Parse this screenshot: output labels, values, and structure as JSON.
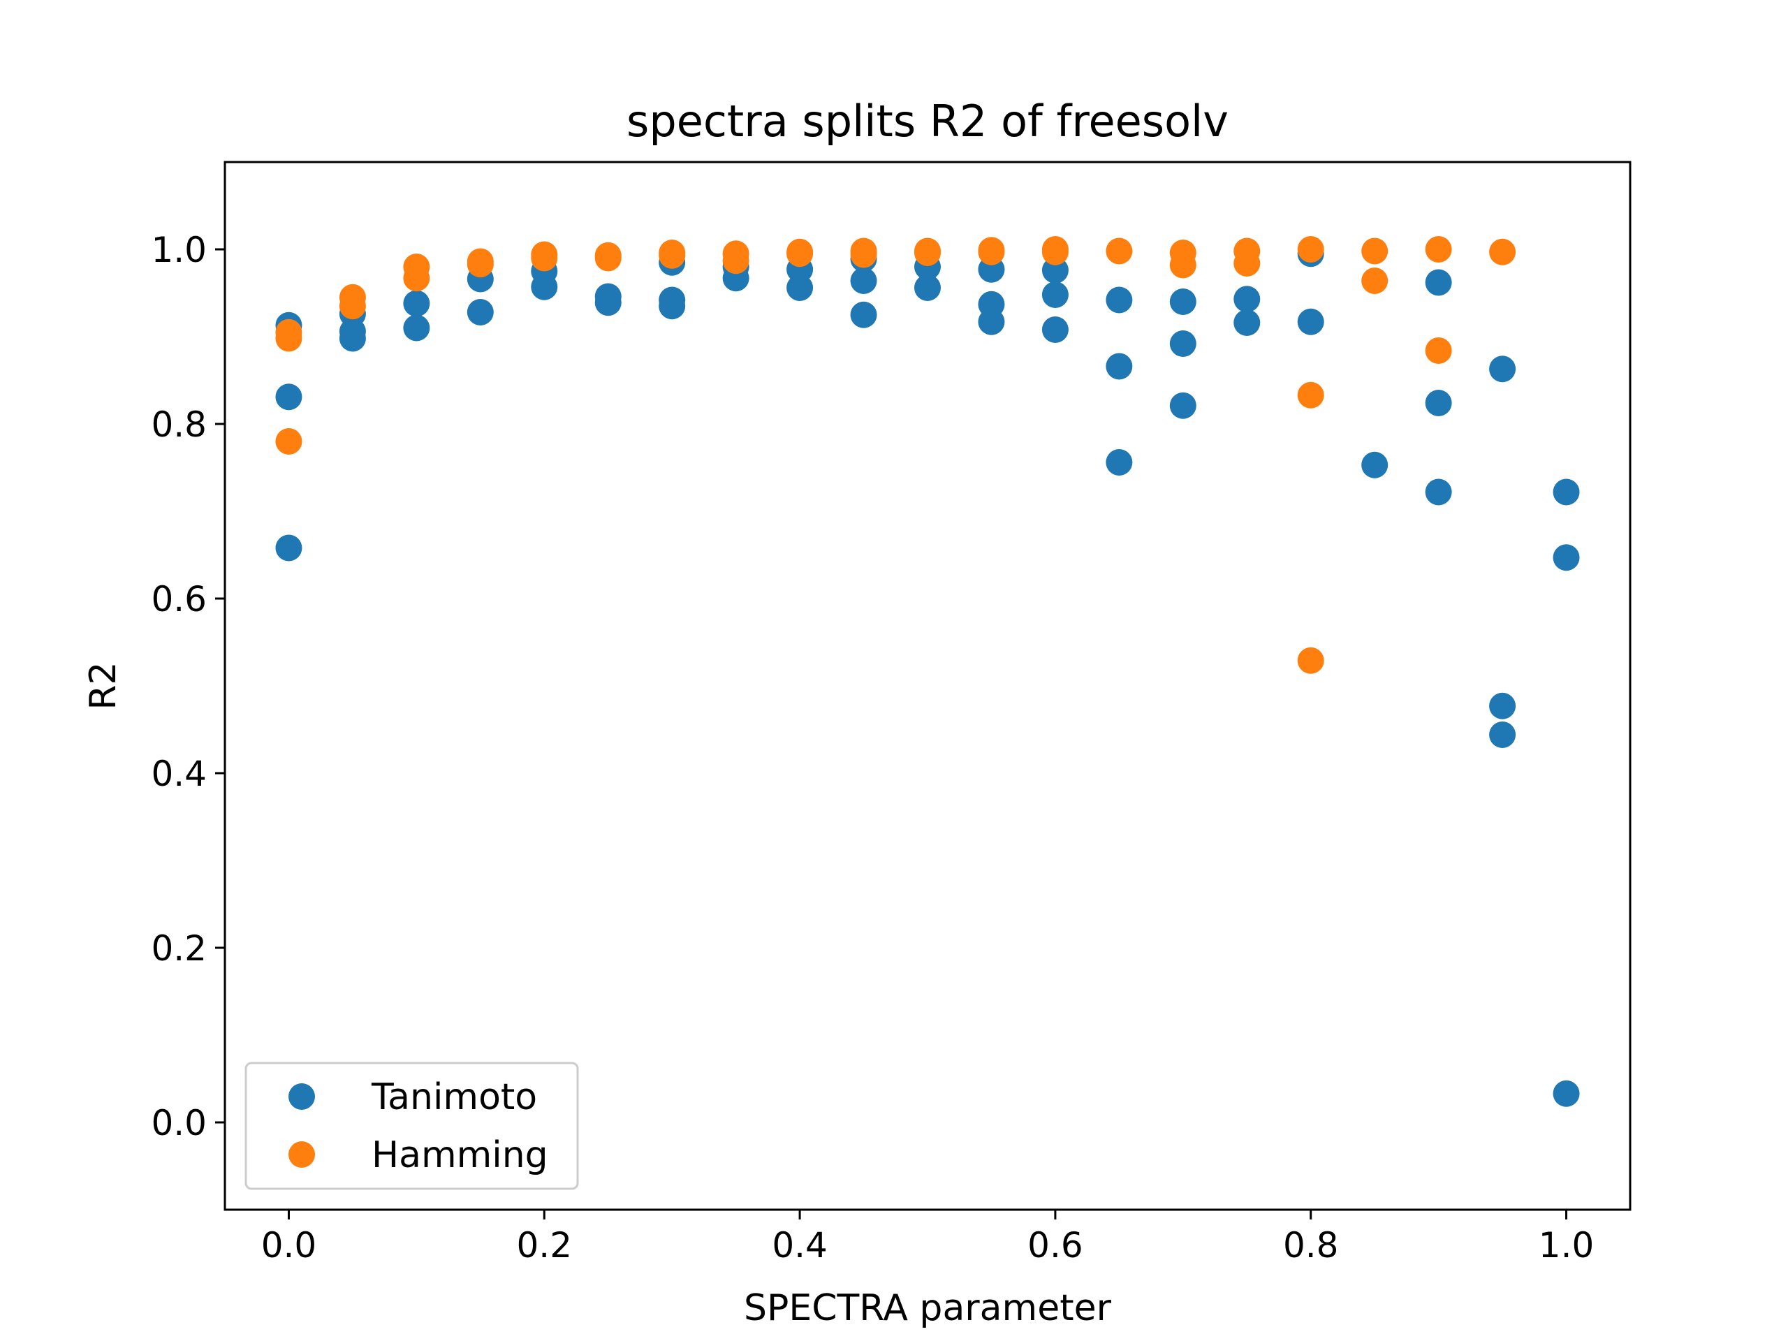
{
  "chart_data": {
    "type": "scatter",
    "title": "spectra splits R2 of freesolv",
    "xlabel": "SPECTRA parameter",
    "ylabel": "R2",
    "xlim": [
      -0.05,
      1.05
    ],
    "ylim": [
      -0.1,
      1.1
    ],
    "xticks": [
      "0.0",
      "0.2",
      "0.4",
      "0.6",
      "0.8",
      "1.0"
    ],
    "yticks": [
      "0.0",
      "0.2",
      "0.4",
      "0.6",
      "0.8",
      "1.0"
    ],
    "grid": false,
    "legend_position": "lower-left",
    "series": [
      {
        "name": "Tanimoto",
        "color": "#1f77b4",
        "points": [
          [
            0.0,
            0.913
          ],
          [
            0.0,
            0.831
          ],
          [
            0.0,
            0.658
          ],
          [
            0.05,
            0.926
          ],
          [
            0.05,
            0.906
          ],
          [
            0.05,
            0.898
          ],
          [
            0.1,
            0.938
          ],
          [
            0.1,
            0.91
          ],
          [
            0.15,
            0.966
          ],
          [
            0.15,
            0.928
          ],
          [
            0.2,
            0.975
          ],
          [
            0.2,
            0.957
          ],
          [
            0.25,
            0.946
          ],
          [
            0.25,
            0.939
          ],
          [
            0.3,
            0.985
          ],
          [
            0.3,
            0.942
          ],
          [
            0.3,
            0.935
          ],
          [
            0.35,
            0.98
          ],
          [
            0.35,
            0.967
          ],
          [
            0.4,
            0.977
          ],
          [
            0.4,
            0.956
          ],
          [
            0.45,
            0.989
          ],
          [
            0.45,
            0.964
          ],
          [
            0.45,
            0.925
          ],
          [
            0.5,
            0.98
          ],
          [
            0.5,
            0.956
          ],
          [
            0.55,
            0.977
          ],
          [
            0.55,
            0.937
          ],
          [
            0.55,
            0.917
          ],
          [
            0.6,
            0.976
          ],
          [
            0.6,
            0.948
          ],
          [
            0.6,
            0.908
          ],
          [
            0.65,
            0.942
          ],
          [
            0.65,
            0.866
          ],
          [
            0.65,
            0.756
          ],
          [
            0.7,
            0.94
          ],
          [
            0.7,
            0.892
          ],
          [
            0.7,
            0.821
          ],
          [
            0.75,
            0.943
          ],
          [
            0.75,
            0.916
          ],
          [
            0.8,
            0.995
          ],
          [
            0.8,
            0.917
          ],
          [
            0.85,
            0.753
          ],
          [
            0.9,
            0.962
          ],
          [
            0.9,
            0.824
          ],
          [
            0.9,
            0.722
          ],
          [
            0.95,
            0.863
          ],
          [
            0.95,
            0.477
          ],
          [
            0.95,
            0.444
          ],
          [
            1.0,
            0.722
          ],
          [
            1.0,
            0.647
          ],
          [
            1.0,
            0.033
          ]
        ]
      },
      {
        "name": "Hamming",
        "color": "#ff7f0e",
        "points": [
          [
            0.0,
            0.905
          ],
          [
            0.0,
            0.898
          ],
          [
            0.0,
            0.78
          ],
          [
            0.05,
            0.945
          ],
          [
            0.05,
            0.935
          ],
          [
            0.1,
            0.98
          ],
          [
            0.1,
            0.967
          ],
          [
            0.15,
            0.986
          ],
          [
            0.15,
            0.983
          ],
          [
            0.2,
            0.994
          ],
          [
            0.2,
            0.99
          ],
          [
            0.25,
            0.993
          ],
          [
            0.25,
            0.99
          ],
          [
            0.3,
            0.996
          ],
          [
            0.3,
            0.993
          ],
          [
            0.35,
            0.995
          ],
          [
            0.35,
            0.987
          ],
          [
            0.4,
            0.997
          ],
          [
            0.4,
            0.995
          ],
          [
            0.45,
            0.998
          ],
          [
            0.45,
            0.994
          ],
          [
            0.5,
            0.998
          ],
          [
            0.5,
            0.996
          ],
          [
            0.55,
            0.999
          ],
          [
            0.55,
            0.997
          ],
          [
            0.6,
            1.0
          ],
          [
            0.6,
            0.997
          ],
          [
            0.65,
            0.998
          ],
          [
            0.7,
            0.996
          ],
          [
            0.7,
            0.982
          ],
          [
            0.75,
            0.998
          ],
          [
            0.75,
            0.984
          ],
          [
            0.8,
            1.0
          ],
          [
            0.8,
            0.833
          ],
          [
            0.8,
            0.529
          ],
          [
            0.85,
            0.998
          ],
          [
            0.85,
            0.964
          ],
          [
            0.9,
            1.0
          ],
          [
            0.9,
            0.884
          ],
          [
            0.95,
            0.997
          ]
        ]
      }
    ]
  }
}
